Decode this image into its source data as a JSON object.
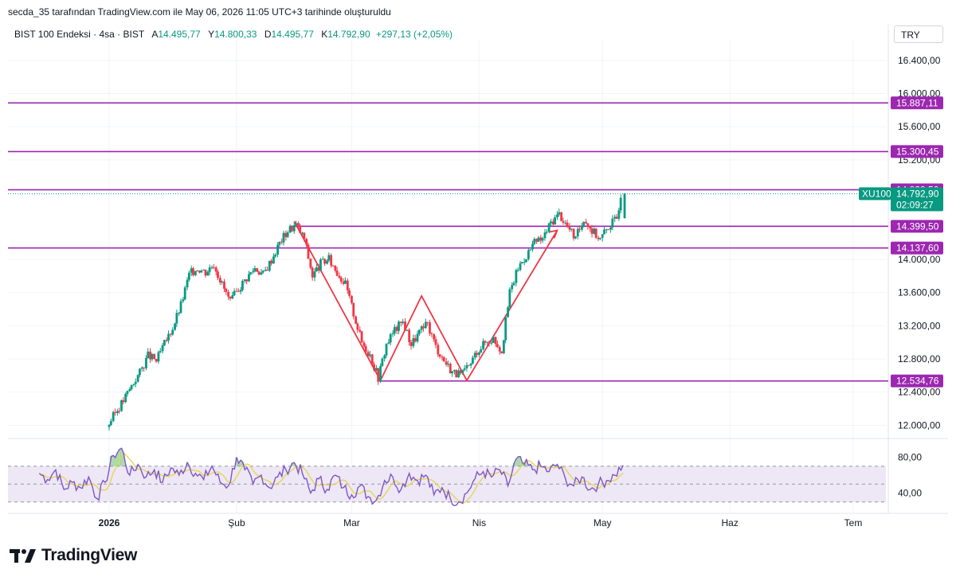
{
  "header": {
    "title": "secda_35 tarafından TradingView.com ile May 06, 2026 11:05 UTC+3 tarihinde oluşturuldu"
  },
  "legend": {
    "symbol": "BIST 100 Endeksi · 4sa · BIST",
    "open_label": "A",
    "open": "14.495,77",
    "high_label": "Y",
    "high": "14.800,33",
    "low_label": "D",
    "low": "14.495,77",
    "close_label": "K",
    "close": "14.792,90",
    "change": "+297,13 (+2,05%)"
  },
  "currency": "TRY",
  "logo": {
    "text": "TradingView"
  },
  "colors": {
    "up": "#089981",
    "down": "#f23645",
    "hline": "#9c27b0",
    "pattern": "#f23645",
    "rsi": "#7e57c2",
    "rsi_ma": "#e6d44a",
    "rsi_band": "#ede7f6"
  },
  "chart_data": {
    "type": "candlestick",
    "symbol": "XU100",
    "ylim": [
      11850,
      16600
    ],
    "y_ticks": [
      "16.400,00",
      "16.000,00",
      "15.600,00",
      "15.200,00",
      "14.000,00",
      "13.600,00",
      "13.200,00",
      "12.800,00",
      "12.400,00",
      "12.000,00"
    ],
    "y_tick_values": [
      16400,
      16000,
      15600,
      15200,
      14000,
      13600,
      13200,
      12800,
      12400,
      12000
    ],
    "x_ticks": [
      "2026",
      "Şub",
      "Mar",
      "Nis",
      "May",
      "Haz",
      "Tem"
    ],
    "x_tick_dates": [
      "2026-01-01",
      "2026-02-01",
      "2026-03-01",
      "2026-04-01",
      "2026-05-01",
      "2026-06-01",
      "2026-07-01"
    ],
    "horizontal_levels": [
      {
        "value": 15887.11,
        "label": "15.887,11",
        "from": "full"
      },
      {
        "value": 15300.45,
        "label": "15.300,45",
        "from": "full"
      },
      {
        "value": 14839.5,
        "label": "14.839,50",
        "from": "full"
      },
      {
        "value": 14399.5,
        "label": "14.399,50",
        "from": "2026-02-14"
      },
      {
        "value": 14137.6,
        "label": "14.137,60",
        "from": "full"
      },
      {
        "value": 12534.76,
        "label": "12.534,76",
        "from": "2026-03-08"
      }
    ],
    "last_price": {
      "symbol": "XU100",
      "value": 14792.9,
      "label": "14.792,90",
      "countdown": "02:09:27"
    },
    "pattern_lines": [
      {
        "date": "2026-02-15",
        "value": 14460
      },
      {
        "date": "2026-03-08",
        "value": 12540
      },
      {
        "date": "2026-03-18",
        "value": 13560
      },
      {
        "date": "2026-03-29",
        "value": 12540
      },
      {
        "date": "2026-04-20",
        "value": 14350
      }
    ],
    "price_path": [
      {
        "date": "2026-01-01",
        "value": 11980
      },
      {
        "date": "2026-01-03",
        "value": 12150
      },
      {
        "date": "2026-01-05",
        "value": 12300
      },
      {
        "date": "2026-01-07",
        "value": 12480
      },
      {
        "date": "2026-01-09",
        "value": 12640
      },
      {
        "date": "2026-01-11",
        "value": 12840
      },
      {
        "date": "2026-01-13",
        "value": 12780
      },
      {
        "date": "2026-01-15",
        "value": 12980
      },
      {
        "date": "2026-01-17",
        "value": 13180
      },
      {
        "date": "2026-01-19",
        "value": 13450
      },
      {
        "date": "2026-01-21",
        "value": 13820
      },
      {
        "date": "2026-01-23",
        "value": 13900
      },
      {
        "date": "2026-01-25",
        "value": 13850
      },
      {
        "date": "2026-01-27",
        "value": 13950
      },
      {
        "date": "2026-01-29",
        "value": 13700
      },
      {
        "date": "2026-01-31",
        "value": 13480
      },
      {
        "date": "2026-02-02",
        "value": 13650
      },
      {
        "date": "2026-02-04",
        "value": 13780
      },
      {
        "date": "2026-02-06",
        "value": 13900
      },
      {
        "date": "2026-02-08",
        "value": 13820
      },
      {
        "date": "2026-02-10",
        "value": 14000
      },
      {
        "date": "2026-02-12",
        "value": 14200
      },
      {
        "date": "2026-02-14",
        "value": 14350
      },
      {
        "date": "2026-02-16",
        "value": 14420
      },
      {
        "date": "2026-02-18",
        "value": 14250
      },
      {
        "date": "2026-02-20",
        "value": 13800
      },
      {
        "date": "2026-02-22",
        "value": 13950
      },
      {
        "date": "2026-02-24",
        "value": 14000
      },
      {
        "date": "2026-02-26",
        "value": 13850
      },
      {
        "date": "2026-02-28",
        "value": 13700
      },
      {
        "date": "2026-03-02",
        "value": 13350
      },
      {
        "date": "2026-03-04",
        "value": 13000
      },
      {
        "date": "2026-03-06",
        "value": 12850
      },
      {
        "date": "2026-03-08",
        "value": 12580
      },
      {
        "date": "2026-03-10",
        "value": 12980
      },
      {
        "date": "2026-03-12",
        "value": 13150
      },
      {
        "date": "2026-03-14",
        "value": 13250
      },
      {
        "date": "2026-03-16",
        "value": 12980
      },
      {
        "date": "2026-03-18",
        "value": 13120
      },
      {
        "date": "2026-03-20",
        "value": 13220
      },
      {
        "date": "2026-03-22",
        "value": 12950
      },
      {
        "date": "2026-03-24",
        "value": 12780
      },
      {
        "date": "2026-03-26",
        "value": 12650
      },
      {
        "date": "2026-03-28",
        "value": 12600
      },
      {
        "date": "2026-03-30",
        "value": 12700
      },
      {
        "date": "2026-04-01",
        "value": 12900
      },
      {
        "date": "2026-04-03",
        "value": 13000
      },
      {
        "date": "2026-04-05",
        "value": 13050
      },
      {
        "date": "2026-04-07",
        "value": 12900
      },
      {
        "date": "2026-04-09",
        "value": 13600
      },
      {
        "date": "2026-04-11",
        "value": 13900
      },
      {
        "date": "2026-04-13",
        "value": 14050
      },
      {
        "date": "2026-04-15",
        "value": 14200
      },
      {
        "date": "2026-04-17",
        "value": 14250
      },
      {
        "date": "2026-04-19",
        "value": 14450
      },
      {
        "date": "2026-04-21",
        "value": 14550
      },
      {
        "date": "2026-04-23",
        "value": 14400
      },
      {
        "date": "2026-04-25",
        "value": 14250
      },
      {
        "date": "2026-04-27",
        "value": 14500
      },
      {
        "date": "2026-04-29",
        "value": 14350
      },
      {
        "date": "2026-05-01",
        "value": 14250
      },
      {
        "date": "2026-05-03",
        "value": 14400
      },
      {
        "date": "2026-05-05",
        "value": 14500
      },
      {
        "date": "2026-05-06",
        "value": 14792.9
      }
    ],
    "rsi": {
      "ylim": [
        20,
        100
      ],
      "y_ticks": [
        "80,00",
        "40,00"
      ],
      "y_tick_values": [
        80,
        40
      ],
      "bands": [
        70,
        50,
        30
      ],
      "path": [
        {
          "date": "2025-12-15",
          "value": 62
        },
        {
          "date": "2025-12-17",
          "value": 55
        },
        {
          "date": "2025-12-19",
          "value": 66
        },
        {
          "date": "2025-12-21",
          "value": 44
        },
        {
          "date": "2025-12-23",
          "value": 52
        },
        {
          "date": "2025-12-25",
          "value": 46
        },
        {
          "date": "2025-12-27",
          "value": 58
        },
        {
          "date": "2025-12-29",
          "value": 34
        },
        {
          "date": "2025-12-31",
          "value": 52
        },
        {
          "date": "2026-01-02",
          "value": 82
        },
        {
          "date": "2026-01-04",
          "value": 90
        },
        {
          "date": "2026-01-06",
          "value": 60
        },
        {
          "date": "2026-01-08",
          "value": 72
        },
        {
          "date": "2026-01-10",
          "value": 58
        },
        {
          "date": "2026-01-12",
          "value": 66
        },
        {
          "date": "2026-01-14",
          "value": 52
        },
        {
          "date": "2026-01-16",
          "value": 68
        },
        {
          "date": "2026-01-18",
          "value": 60
        },
        {
          "date": "2026-01-20",
          "value": 74
        },
        {
          "date": "2026-01-22",
          "value": 62
        },
        {
          "date": "2026-01-24",
          "value": 55
        },
        {
          "date": "2026-01-26",
          "value": 70
        },
        {
          "date": "2026-01-28",
          "value": 52
        },
        {
          "date": "2026-01-30",
          "value": 48
        },
        {
          "date": "2026-02-01",
          "value": 80
        },
        {
          "date": "2026-02-03",
          "value": 66
        },
        {
          "date": "2026-02-05",
          "value": 50
        },
        {
          "date": "2026-02-07",
          "value": 60
        },
        {
          "date": "2026-02-09",
          "value": 46
        },
        {
          "date": "2026-02-11",
          "value": 58
        },
        {
          "date": "2026-02-13",
          "value": 66
        },
        {
          "date": "2026-02-15",
          "value": 74
        },
        {
          "date": "2026-02-17",
          "value": 62
        },
        {
          "date": "2026-02-19",
          "value": 40
        },
        {
          "date": "2026-02-21",
          "value": 56
        },
        {
          "date": "2026-02-23",
          "value": 44
        },
        {
          "date": "2026-02-25",
          "value": 60
        },
        {
          "date": "2026-02-27",
          "value": 46
        },
        {
          "date": "2026-03-01",
          "value": 38
        },
        {
          "date": "2026-03-03",
          "value": 48
        },
        {
          "date": "2026-03-05",
          "value": 36
        },
        {
          "date": "2026-03-07",
          "value": 32
        },
        {
          "date": "2026-03-09",
          "value": 54
        },
        {
          "date": "2026-03-11",
          "value": 58
        },
        {
          "date": "2026-03-13",
          "value": 44
        },
        {
          "date": "2026-03-15",
          "value": 62
        },
        {
          "date": "2026-03-17",
          "value": 54
        },
        {
          "date": "2026-03-19",
          "value": 60
        },
        {
          "date": "2026-03-21",
          "value": 38
        },
        {
          "date": "2026-03-23",
          "value": 46
        },
        {
          "date": "2026-03-25",
          "value": 34
        },
        {
          "date": "2026-03-27",
          "value": 30
        },
        {
          "date": "2026-03-29",
          "value": 40
        },
        {
          "date": "2026-03-31",
          "value": 56
        },
        {
          "date": "2026-04-02",
          "value": 64
        },
        {
          "date": "2026-04-04",
          "value": 58
        },
        {
          "date": "2026-04-06",
          "value": 66
        },
        {
          "date": "2026-04-08",
          "value": 48
        },
        {
          "date": "2026-04-10",
          "value": 78
        },
        {
          "date": "2026-04-12",
          "value": 72
        },
        {
          "date": "2026-04-14",
          "value": 66
        },
        {
          "date": "2026-04-16",
          "value": 70
        },
        {
          "date": "2026-04-18",
          "value": 64
        },
        {
          "date": "2026-04-20",
          "value": 72
        },
        {
          "date": "2026-04-22",
          "value": 56
        },
        {
          "date": "2026-04-24",
          "value": 48
        },
        {
          "date": "2026-04-26",
          "value": 58
        },
        {
          "date": "2026-04-28",
          "value": 44
        },
        {
          "date": "2026-04-30",
          "value": 50
        },
        {
          "date": "2026-05-02",
          "value": 54
        },
        {
          "date": "2026-05-04",
          "value": 60
        },
        {
          "date": "2026-05-06",
          "value": 71
        }
      ]
    }
  }
}
